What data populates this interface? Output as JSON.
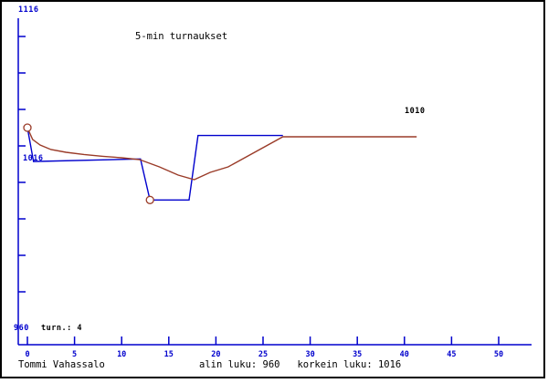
{
  "window_title": "5-min turnaukset",
  "colors": {
    "background": "#ffffff",
    "frame_border": "#000000",
    "axis": "#0000cd",
    "rating_line": "#0000cd",
    "average_line": "#9a3b28",
    "marker_stroke": "#9a3b28",
    "text_black": "#000000",
    "text_blue": "#0000cd"
  },
  "labels": {
    "title": "5-min turnaukset",
    "y_max": "1116",
    "y_min": "960",
    "start_value": "1016",
    "final_value": "1010",
    "tournament_count": "turn.: 4"
  },
  "footer": {
    "player": "Tommi Vahassalo",
    "summary": "alin luku: 960   korkein luku: 1016"
  },
  "chart_data": {
    "type": "line",
    "title": "5-min turnaukset",
    "xlabel": "",
    "ylabel": "",
    "grid": false,
    "legend": "none",
    "x_axis": {
      "ticks": [
        0,
        5,
        10,
        15,
        20,
        25,
        30,
        35,
        40,
        45,
        50
      ],
      "range": [
        0,
        53.5
      ]
    },
    "y_axis": {
      "top_label": "1116",
      "bottom_label": "960",
      "unlabeled_tick_count": 8
    },
    "series": [
      {
        "name": "rating",
        "color": "#0000cd",
        "points": [
          [
            0,
            1016
          ],
          [
            0.65,
            990
          ],
          [
            12,
            992
          ],
          [
            13,
            960.5
          ],
          [
            17.15,
            960.5
          ],
          [
            18.1,
            1010
          ],
          [
            27.1,
            1010
          ]
        ]
      },
      {
        "name": "average",
        "color": "#9a3b28",
        "points": [
          [
            0,
            1016
          ],
          [
            0.55,
            1007
          ],
          [
            1.35,
            1002.7
          ],
          [
            2.5,
            999.2
          ],
          [
            4.1,
            997.1
          ],
          [
            6,
            995.4
          ],
          [
            8,
            994
          ],
          [
            10,
            992.9
          ],
          [
            11.9,
            991.5
          ],
          [
            14,
            985.9
          ],
          [
            16,
            979.6
          ],
          [
            17.7,
            976.1
          ],
          [
            19.4,
            981.7
          ],
          [
            21.3,
            985.9
          ],
          [
            27.1,
            1009
          ],
          [
            41.3,
            1009
          ]
        ]
      }
    ],
    "markers": [
      {
        "name": "highest-point",
        "x": 0,
        "y": 1016,
        "value_label": "1016"
      },
      {
        "name": "lowest-point",
        "x": 13,
        "y": 960.5,
        "value_label": "960"
      }
    ],
    "stats": {
      "lowest": 960,
      "highest": 1016,
      "final": 1010,
      "tournaments": 4
    }
  }
}
